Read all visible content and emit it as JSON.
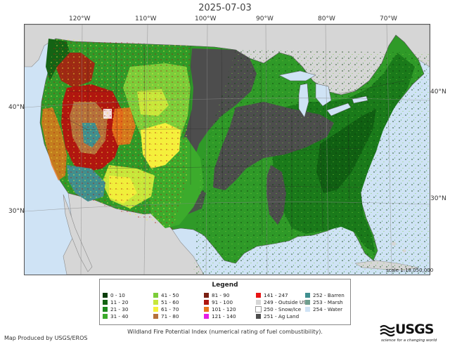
{
  "date": "2025-07-03",
  "map": {
    "longitudes": [
      {
        "label": "120°W"
      },
      {
        "label": "110°W"
      },
      {
        "label": "100°W"
      },
      {
        "label": "90°W"
      },
      {
        "label": "80°W"
      },
      {
        "label": "70°W"
      }
    ],
    "latitudes_left": [
      {
        "label": "40°N"
      },
      {
        "label": "30°N"
      }
    ],
    "latitudes_right": [
      {
        "label": "40°N"
      },
      {
        "label": "30°N"
      }
    ],
    "scale": "scale 1:18,050,000"
  },
  "legend": {
    "title": "Legend",
    "items": [
      {
        "label": "0 - 10",
        "color": "#0b3d0b"
      },
      {
        "label": "11 - 20",
        "color": "#146314"
      },
      {
        "label": "21 - 30",
        "color": "#1f8a1f"
      },
      {
        "label": "31 - 40",
        "color": "#3cab2c"
      },
      {
        "label": "41 - 50",
        "color": "#7ccd3a"
      },
      {
        "label": "51 - 60",
        "color": "#c7e73b"
      },
      {
        "label": "61 - 70",
        "color": "#f5f03c"
      },
      {
        "label": "71 - 80",
        "color": "#b5713c"
      },
      {
        "label": "81 - 90",
        "color": "#7a1f12"
      },
      {
        "label": "91 - 100",
        "color": "#b0160f"
      },
      {
        "label": "101 - 120",
        "color": "#e8761c"
      },
      {
        "label": "121 - 140",
        "color": "#e61ce6"
      },
      {
        "label": "141 - 247",
        "color": "#e81414"
      },
      {
        "label": "249 - Outside US",
        "color": "#d6d6d6"
      },
      {
        "label": "250 - Snow/Ice",
        "color": "#ffffff"
      },
      {
        "label": "251 - Ag Land",
        "color": "#4d4d4d"
      },
      {
        "label": "252 - Barren",
        "color": "#3f8f8f"
      },
      {
        "label": "253 - Marsh",
        "color": "#6f9e8f"
      },
      {
        "label": "254 - Water",
        "color": "#cfe3f5"
      }
    ]
  },
  "caption": "Wildland Fire Potential Index (numerical rating of fuel combustibility).",
  "producer": "Map Produced by USGS/EROS",
  "logo": {
    "name": "USGS",
    "tagline": "science for a changing world"
  }
}
